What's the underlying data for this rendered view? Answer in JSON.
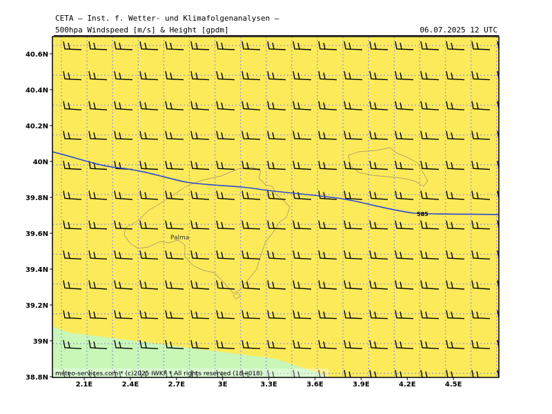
{
  "header": {
    "title": "CETA – Inst. f. Wetter- und Klimafolgenanalysen –",
    "product": "500hpa Windspeed [m/s] & Height [gpdm]",
    "valid_time": "06.07.2025 12 UTC"
  },
  "footer": {
    "credit": "meteo-services.com * (c)2025 IWKF * All rights reserved (18+018)"
  },
  "map": {
    "lon_range": [
      1.9,
      4.9
    ],
    "lat_range": [
      38.8,
      40.7
    ],
    "xticks": [
      "2.1E",
      "2.4E",
      "2.7E",
      "3E",
      "3.3E",
      "3.6E",
      "3.9E",
      "4.2E",
      "4.5E"
    ],
    "xtick_values": [
      2.1,
      2.4,
      2.7,
      3.0,
      3.3,
      3.6,
      3.9,
      4.2,
      4.5
    ],
    "yticks": [
      "40.6N",
      "40.4N",
      "40.2N",
      "40N",
      "39.8N",
      "39.6N",
      "39.4N",
      "39.2N",
      "39N",
      "38.8N"
    ],
    "ytick_values": [
      40.6,
      40.4,
      40.2,
      40.0,
      39.8,
      39.6,
      39.4,
      39.2,
      39.0,
      38.8
    ],
    "grid": "dotted",
    "background_color": "#fdea5a",
    "low_wind_color": "#c8f7b8",
    "contour_color": "#2a46d6",
    "contour_label": "585",
    "place_label": "Palma",
    "wind_direction": "westerly"
  }
}
